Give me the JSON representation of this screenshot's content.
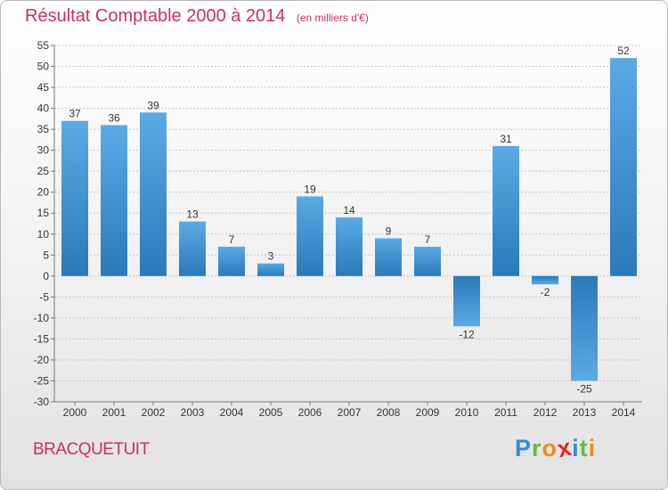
{
  "chart_data": {
    "type": "bar",
    "title": "Résultat Comptable 2000 à 2014",
    "subtitle": "(en milliers d'€)",
    "xlabel": "",
    "ylabel": "",
    "categories": [
      "2000",
      "2001",
      "2002",
      "2003",
      "2004",
      "2005",
      "2006",
      "2007",
      "2008",
      "2009",
      "2010",
      "2011",
      "2012",
      "2013",
      "2014"
    ],
    "values": [
      37,
      36,
      39,
      13,
      7,
      3,
      19,
      14,
      9,
      7,
      -12,
      31,
      -2,
      -25,
      52
    ],
    "ylim": [
      -30,
      55
    ],
    "yticks": [
      -30,
      -25,
      -20,
      -15,
      -10,
      -5,
      0,
      5,
      10,
      15,
      20,
      25,
      30,
      35,
      40,
      45,
      50,
      55
    ],
    "grid": true,
    "bar_color_light": "#5aaae6",
    "bar_color_dark": "#2a7ab8",
    "grid_color": "#c4c4c4"
  },
  "commune": "BRACQUETUIT",
  "logo": {
    "letters": [
      "P",
      "r",
      "o",
      "x",
      "i",
      "t",
      "i"
    ],
    "colors": [
      "#2f8fd0",
      "#6ab83a",
      "#f08a1c",
      "#d92a2a",
      "#2f8fd0",
      "#6ab83a",
      "#f08a1c"
    ]
  },
  "colors": {
    "title": "#c8325a"
  }
}
